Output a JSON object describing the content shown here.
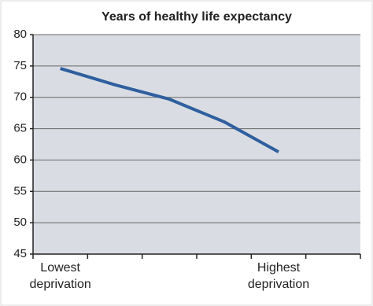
{
  "chart_data": {
    "type": "line",
    "title": "Years of healthy life expectancy",
    "categories": [
      "Lowest deprivation",
      null,
      null,
      null,
      "Highest deprivation",
      null
    ],
    "values": [
      74.6,
      72.0,
      69.7,
      66.1,
      61.3,
      null
    ],
    "color": "#2f5f9e",
    "ylim": [
      45,
      80
    ],
    "yticks": [
      45,
      50,
      55,
      60,
      65,
      70,
      75,
      80
    ],
    "grid": true
  }
}
